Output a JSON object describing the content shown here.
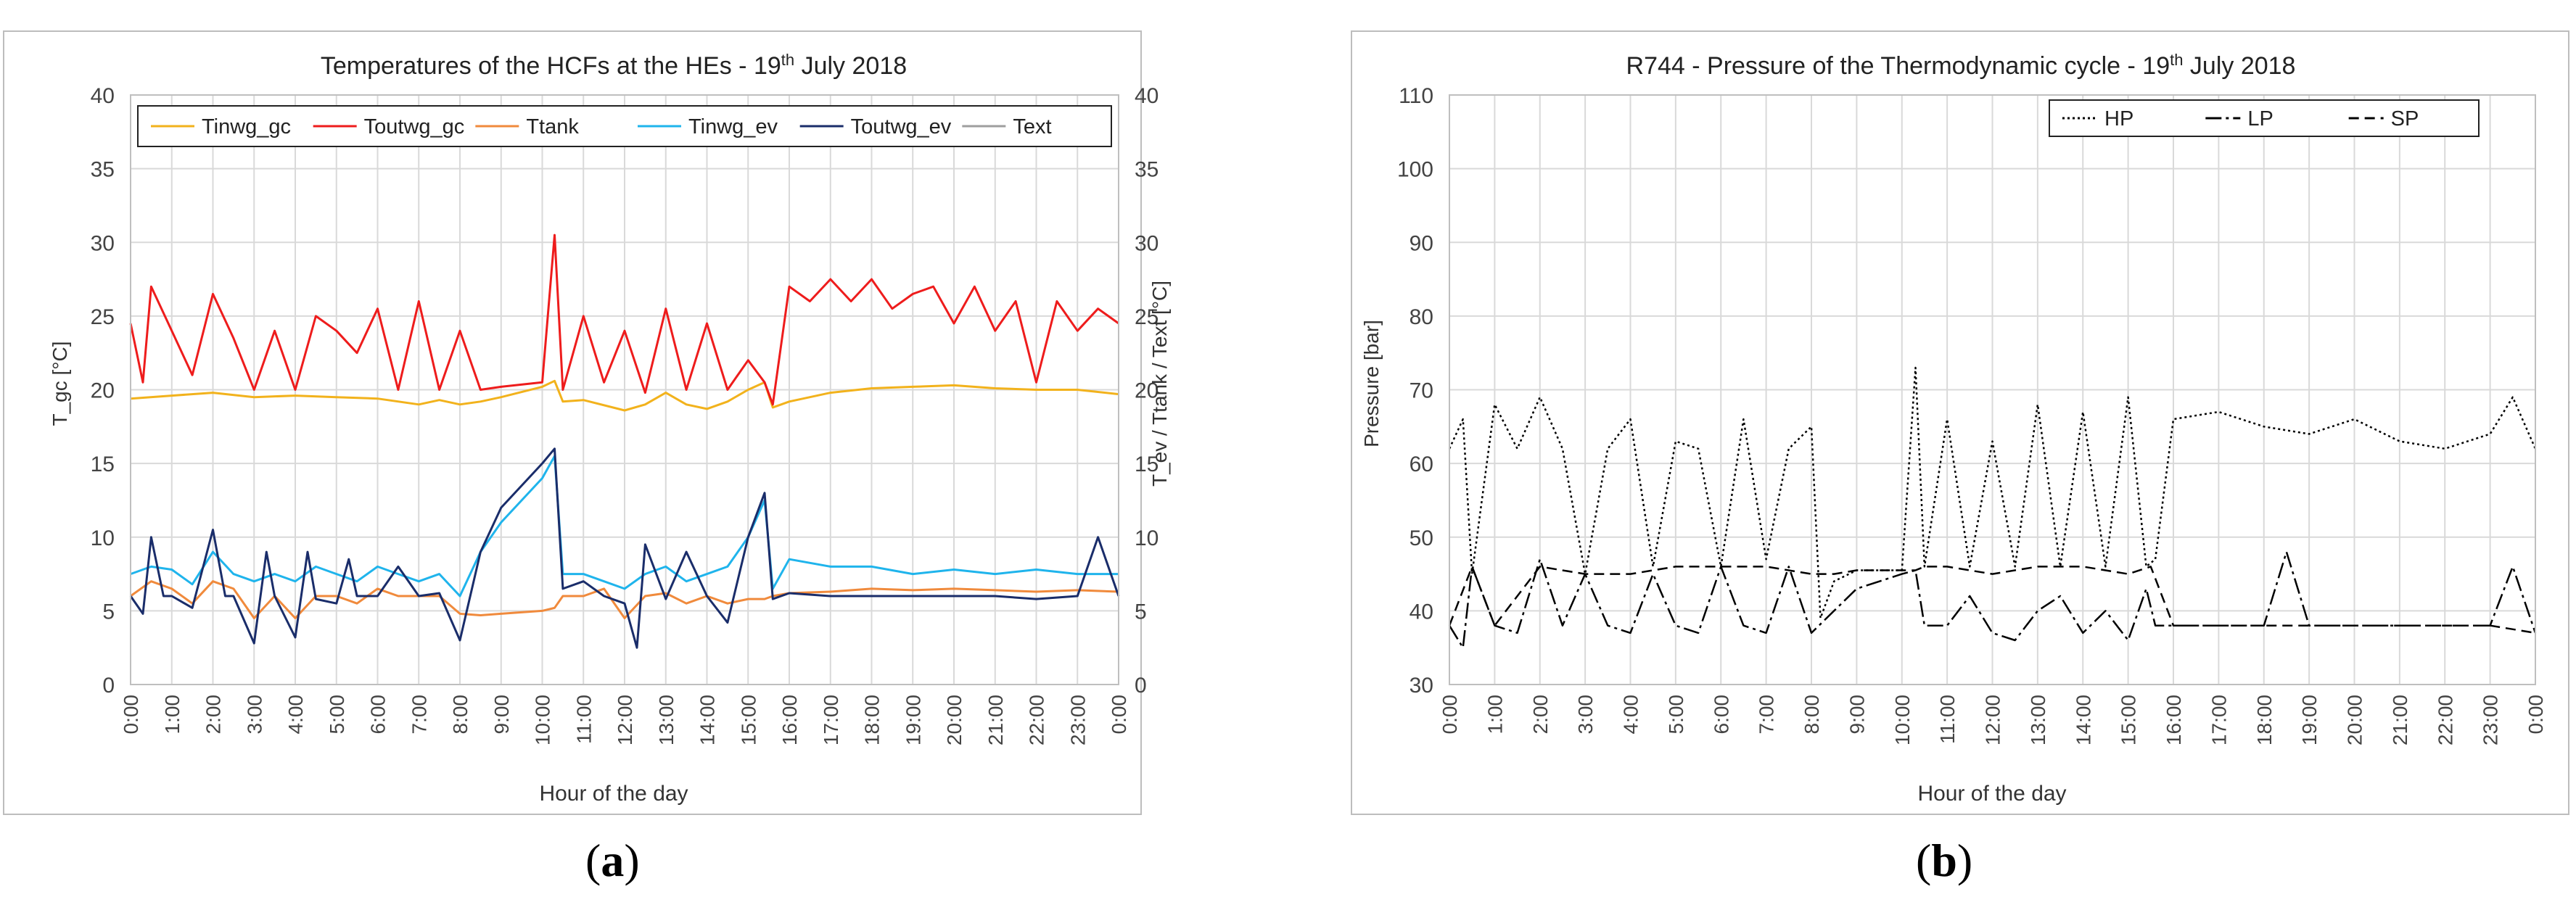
{
  "figure": {
    "panel_a_label_prefix": "(",
    "panel_a_label_letter": "a",
    "panel_a_label_suffix": ")",
    "panel_b_label_prefix": "(",
    "panel_b_label_letter": "b",
    "panel_b_label_suffix": ")"
  },
  "chart_data": [
    {
      "type": "line",
      "title_main": "Temperatures of the HCFs at the HEs - 19",
      "title_sup": "th",
      "title_tail": " July 2018",
      "xlabel": "Hour of the day",
      "ylabel": "T_gc [°C]",
      "y2label": "T_ev / Ttank / Text  [°C]",
      "ylim": [
        0,
        40
      ],
      "y2lim": [
        0,
        40
      ],
      "yticks": [
        "0",
        "5",
        "10",
        "15",
        "20",
        "25",
        "30",
        "35",
        "40"
      ],
      "xticks": [
        "0:00",
        "1:00",
        "2:00",
        "3:00",
        "4:00",
        "5:00",
        "6:00",
        "7:00",
        "8:00",
        "9:00",
        "10:00",
        "11:00",
        "12:00",
        "13:00",
        "14:00",
        "15:00",
        "16:00",
        "17:00",
        "18:00",
        "19:00",
        "20:00",
        "21:00",
        "22:00",
        "23:00",
        "0:00"
      ],
      "xlim_hours": [
        0,
        24
      ],
      "grid": true,
      "legend_position": "top",
      "series": [
        {
          "name": "Tinwg_gc",
          "color": "#f2b21c",
          "x": [
            0,
            1,
            2,
            3,
            4,
            5,
            6,
            7,
            7.5,
            8,
            8.5,
            9,
            10,
            10.3,
            10.5,
            11,
            12,
            12.5,
            13,
            13.5,
            14,
            14.5,
            15,
            15.4,
            15.6,
            16,
            17,
            18,
            19,
            20,
            21,
            22,
            23,
            24
          ],
          "y": [
            19.4,
            19.6,
            19.8,
            19.5,
            19.6,
            19.5,
            19.4,
            19,
            19.3,
            19,
            19.2,
            19.5,
            20.2,
            20.6,
            19.2,
            19.3,
            18.6,
            19,
            19.8,
            19,
            18.7,
            19.2,
            20,
            20.5,
            18.8,
            19.2,
            19.8,
            20.1,
            20.2,
            20.3,
            20.1,
            20,
            20,
            19.7
          ]
        },
        {
          "name": "Toutwg_gc",
          "color": "#ee1c1c",
          "x": [
            0,
            0.3,
            0.5,
            1,
            1.5,
            2,
            2.5,
            3,
            3.5,
            4,
            4.5,
            5,
            5.5,
            6,
            6.5,
            7,
            7.5,
            8,
            8.5,
            9,
            10,
            10.3,
            10.5,
            11,
            11.5,
            12,
            12.5,
            13,
            13.5,
            14,
            14.5,
            15,
            15.4,
            15.6,
            16,
            16.5,
            17,
            17.5,
            18,
            18.5,
            19,
            19.5,
            20,
            20.5,
            21,
            21.5,
            22,
            22.5,
            23,
            23.5,
            24
          ],
          "y": [
            24.5,
            20.5,
            27,
            24,
            21,
            26.5,
            23.5,
            20,
            24,
            20,
            25,
            24,
            22.5,
            25.5,
            20,
            26,
            20,
            24,
            20,
            20.2,
            20.5,
            30.5,
            20,
            25,
            20.5,
            24,
            19.8,
            25.5,
            20,
            24.5,
            20,
            22,
            20.5,
            19,
            27,
            26,
            27.5,
            26,
            27.5,
            25.5,
            26.5,
            27,
            24.5,
            27,
            24,
            26,
            20.5,
            26,
            24,
            25.5,
            24.5
          ]
        },
        {
          "name": "Ttank",
          "color": "#f08a3c",
          "x": [
            0,
            0.5,
            1,
            1.5,
            2,
            2.5,
            3,
            3.5,
            4,
            4.5,
            5,
            5.5,
            6,
            6.5,
            7,
            7.5,
            8,
            8.5,
            9,
            10,
            10.3,
            10.5,
            11,
            11.5,
            12,
            12.5,
            13,
            13.5,
            14,
            14.5,
            15,
            15.4,
            15.6,
            16,
            17,
            18,
            19,
            20,
            21,
            22,
            23,
            24
          ],
          "y": [
            6,
            7,
            6.5,
            5.5,
            7,
            6.5,
            4.5,
            6,
            4.5,
            6,
            6,
            5.5,
            6.5,
            6,
            6,
            6,
            4.8,
            4.7,
            4.8,
            5,
            5.2,
            6,
            6,
            6.5,
            4.5,
            6,
            6.2,
            5.5,
            6,
            5.5,
            5.8,
            5.8,
            6,
            6.2,
            6.3,
            6.5,
            6.4,
            6.5,
            6.4,
            6.3,
            6.4,
            6.3
          ]
        },
        {
          "name": "Tinwg_ev",
          "color": "#1fb4ec",
          "x": [
            0,
            0.5,
            1,
            1.5,
            2,
            2.5,
            3,
            3.5,
            4,
            4.5,
            5,
            5.5,
            6,
            6.5,
            7,
            7.5,
            8,
            8.5,
            9,
            10,
            10.3,
            10.5,
            11,
            11.5,
            12,
            12.5,
            13,
            13.5,
            14,
            14.5,
            15,
            15.4,
            15.6,
            16,
            17,
            18,
            19,
            20,
            21,
            22,
            23,
            24
          ],
          "y": [
            7.5,
            8,
            7.8,
            6.8,
            9,
            7.5,
            7,
            7.5,
            7,
            8,
            7.5,
            7,
            8,
            7.5,
            7,
            7.5,
            6,
            9,
            11,
            14,
            15.5,
            7.5,
            7.5,
            7,
            6.5,
            7.5,
            8,
            7,
            7.5,
            8,
            10,
            12.5,
            6.5,
            8.5,
            8,
            8,
            7.5,
            7.8,
            7.5,
            7.8,
            7.5,
            7.5
          ]
        },
        {
          "name": "Toutwg_ev",
          "color": "#1a2d6a",
          "x": [
            0,
            0.3,
            0.5,
            0.8,
            1,
            1.5,
            2,
            2.3,
            2.5,
            3,
            3.3,
            3.5,
            4,
            4.3,
            4.5,
            5,
            5.3,
            5.5,
            6,
            6.5,
            7,
            7.5,
            8,
            8.5,
            9,
            10,
            10.3,
            10.5,
            11,
            11.5,
            12,
            12.3,
            12.5,
            13,
            13.5,
            14,
            14.5,
            15,
            15.4,
            15.6,
            16,
            17,
            18,
            19,
            20,
            21,
            22,
            23,
            23.5,
            24
          ],
          "y": [
            6,
            4.8,
            10,
            6,
            6,
            5.2,
            10.5,
            6,
            6,
            2.8,
            9,
            6,
            3.2,
            9,
            5.8,
            5.5,
            8.5,
            6,
            6,
            8,
            6,
            6.2,
            3,
            9,
            12,
            15,
            16,
            6.5,
            7,
            6,
            5.5,
            2.5,
            9.5,
            5.8,
            9,
            6,
            4.2,
            10,
            13,
            5.8,
            6.2,
            6,
            6,
            6,
            6,
            6,
            5.8,
            6,
            10,
            6
          ]
        },
        {
          "name": "Text",
          "color": "#9e9e9e",
          "x": [],
          "y": []
        }
      ]
    },
    {
      "type": "line",
      "title_main": "R744 - Pressure of the Thermodynamic cycle - 19",
      "title_sup": "th",
      "title_tail": " July 2018",
      "xlabel": "Hour of the day",
      "ylabel": "Pressure [bar]",
      "ylim": [
        30,
        110
      ],
      "yticks": [
        "30",
        "40",
        "50",
        "60",
        "70",
        "80",
        "90",
        "100",
        "110"
      ],
      "xticks": [
        "0:00",
        "1:00",
        "2:00",
        "3:00",
        "4:00",
        "5:00",
        "6:00",
        "7:00",
        "8:00",
        "9:00",
        "10:00",
        "11:00",
        "12:00",
        "13:00",
        "14:00",
        "15:00",
        "16:00",
        "17:00",
        "18:00",
        "19:00",
        "20:00",
        "21:00",
        "22:00",
        "23:00",
        "0:00"
      ],
      "xlim_hours": [
        0,
        24
      ],
      "grid": true,
      "legend_position": "top-right",
      "series": [
        {
          "name": "HP",
          "color": "#000000",
          "dash": "dotted",
          "x": [
            0,
            0.3,
            0.5,
            1,
            1.5,
            2,
            2.5,
            3,
            3.5,
            4,
            4.5,
            5,
            5.5,
            6,
            6.5,
            7,
            7.5,
            8,
            8.2,
            8.5,
            9,
            10,
            10.3,
            10.5,
            11,
            11.5,
            12,
            12.5,
            13,
            13.5,
            14,
            14.5,
            15,
            15.4,
            15.6,
            16,
            17,
            18,
            19,
            20,
            21,
            22,
            23,
            23.5,
            24
          ],
          "y": [
            62,
            66,
            45,
            68,
            62,
            69,
            62,
            45,
            62,
            66,
            46,
            63,
            62,
            46,
            66,
            47,
            62,
            65,
            39,
            44,
            45.5,
            45.5,
            73,
            46,
            66,
            46,
            63,
            46,
            68,
            46,
            67,
            46,
            69,
            46,
            47,
            66,
            67,
            65,
            64,
            66,
            63,
            62,
            64,
            69,
            62
          ]
        },
        {
          "name": "LP",
          "color": "#000000",
          "dash": "dash-dot",
          "x": [
            0,
            0.3,
            0.5,
            1,
            1.5,
            2,
            2.5,
            3,
            3.5,
            4,
            4.5,
            5,
            5.5,
            6,
            6.5,
            7,
            7.5,
            8,
            8.5,
            9,
            10,
            10.3,
            10.5,
            11,
            11.5,
            12,
            12.5,
            13,
            13.5,
            14,
            14.5,
            15,
            15.4,
            15.6,
            16,
            17,
            18,
            18.5,
            19,
            20,
            21,
            22,
            23,
            23.5,
            24
          ],
          "y": [
            38,
            35,
            46,
            38,
            37,
            47,
            38,
            45,
            38,
            37,
            45,
            38,
            37,
            46,
            38,
            37,
            46,
            37,
            40,
            43,
            45,
            45.5,
            38,
            38,
            42,
            37,
            36,
            40,
            42,
            37,
            40,
            36,
            43,
            38,
            38,
            38,
            38,
            48,
            38,
            38,
            38,
            38,
            38,
            46,
            37
          ]
        },
        {
          "name": "SP",
          "color": "#000000",
          "dash": "dashed",
          "x": [
            0,
            0.5,
            1,
            2,
            3,
            4,
            5,
            6,
            7,
            8,
            8.5,
            9,
            10,
            10.3,
            10.5,
            11,
            12,
            13,
            14,
            15,
            15.5,
            16,
            17,
            18,
            19,
            20,
            21,
            22,
            23,
            24
          ],
          "y": [
            38,
            46,
            38,
            46,
            45,
            45,
            46,
            46,
            46,
            45,
            45,
            45.5,
            45.5,
            45.5,
            46,
            46,
            45,
            46,
            46,
            45,
            46,
            38,
            38,
            38,
            38,
            38,
            38,
            38,
            38,
            37
          ]
        }
      ]
    }
  ]
}
